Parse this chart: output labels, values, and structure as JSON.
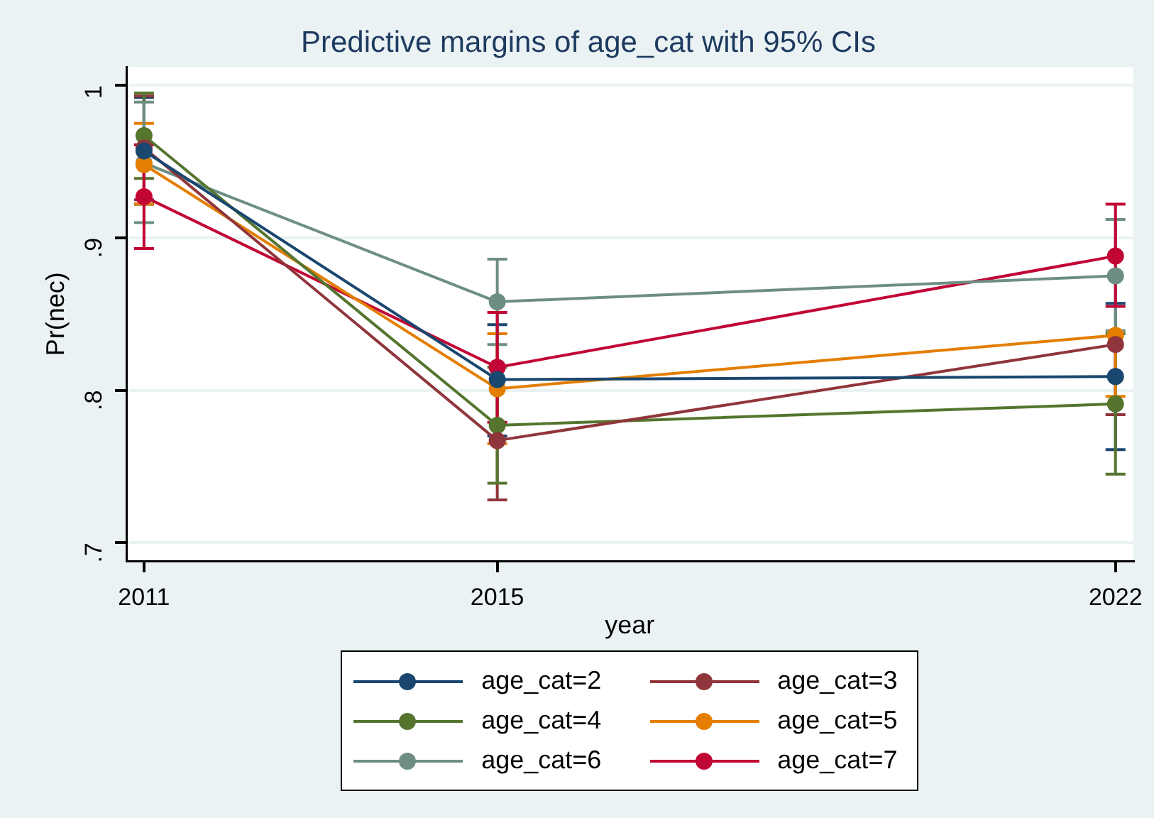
{
  "chart_data": {
    "type": "line",
    "title": "Predictive margins of age_cat with 95% CIs",
    "xlabel": "year",
    "ylabel": "Pr(nec)",
    "x": [
      2011,
      2015,
      2022
    ],
    "xlim": [
      2010.8,
      2022.2
    ],
    "xticks": [
      2011,
      2015,
      2022
    ],
    "ylim": [
      0.688,
      1.012
    ],
    "yticks": [
      {
        "value": 0.7,
        "label": ".7"
      },
      {
        "value": 0.8,
        "label": ".8"
      },
      {
        "value": 0.9,
        "label": ".9"
      },
      1
    ],
    "grid": "y",
    "legend": "bottom",
    "marker": "circle",
    "line_style": "solid",
    "series": [
      {
        "name": "age_cat=2",
        "color": "#1a476f",
        "values": [
          0.957,
          0.807,
          0.809
        ],
        "errors": [
          [
            0.922,
            0.992
          ],
          [
            0.77,
            0.843
          ],
          [
            0.761,
            0.857
          ]
        ]
      },
      {
        "name": "age_cat=3",
        "color": "#90353b",
        "values": [
          0.959,
          0.767,
          0.83
        ],
        "errors": [
          [
            0.925,
            0.993
          ],
          [
            0.728,
            0.767
          ],
          [
            0.784,
            0.83
          ]
        ]
      },
      {
        "name": "age_cat=4",
        "color": "#55752f",
        "values": [
          0.967,
          0.777,
          0.791
        ],
        "errors": [
          [
            0.939,
            0.995
          ],
          [
            0.739,
            0.815
          ],
          [
            0.745,
            0.837
          ]
        ]
      },
      {
        "name": "age_cat=5",
        "color": "#e37e00",
        "values": [
          0.948,
          0.801,
          0.836
        ],
        "errors": [
          [
            0.922,
            0.975
          ],
          [
            0.765,
            0.837
          ],
          [
            0.796,
            0.836
          ]
        ]
      },
      {
        "name": "age_cat=6",
        "color": "#6e8e84",
        "values": [
          0.949,
          0.858,
          0.875
        ],
        "errors": [
          [
            0.91,
            0.989
          ],
          [
            0.83,
            0.886
          ],
          [
            0.839,
            0.912
          ]
        ]
      },
      {
        "name": "age_cat=7",
        "color": "#c10534",
        "values": [
          0.927,
          0.815,
          0.888
        ],
        "errors": [
          [
            0.893,
            0.961
          ],
          [
            0.779,
            0.851
          ],
          [
            0.855,
            0.922
          ]
        ]
      }
    ]
  }
}
